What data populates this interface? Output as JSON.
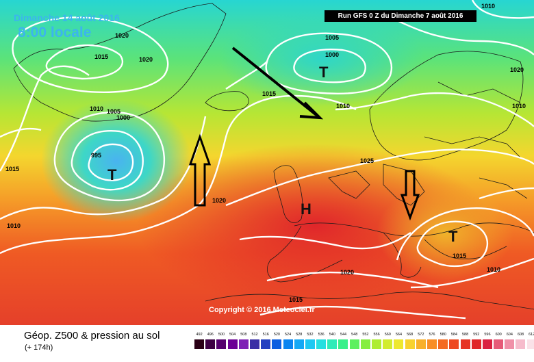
{
  "map": {
    "date_label": "Dimanche 14 août 2016",
    "time_label": "8:00 locale",
    "run_label": "Run GFS 0 Z du Dimanche 7 août 2016",
    "copyright": "Copyright © 2016 Meteociel.fr",
    "product_label": "Géop. Z500 & pression au sol",
    "lead_time": "(+ 174h)",
    "isobar_labels": [
      "1020",
      "1015",
      "1020",
      "1010",
      "1005",
      "1000",
      "995",
      "1015",
      "1010",
      "1005",
      "1000",
      "1015",
      "1010",
      "1010",
      "1020",
      "1020",
      "1025",
      "1015",
      "1010",
      "1020",
      "1015",
      "1010"
    ],
    "pressure_centers": [
      {
        "symbol": "T",
        "type": "low"
      },
      {
        "symbol": "T",
        "type": "low"
      },
      {
        "symbol": "H",
        "type": "high"
      },
      {
        "symbol": "T",
        "type": "low"
      }
    ],
    "scale_labels": [
      "492",
      "496",
      "500",
      "504",
      "508",
      "512",
      "516",
      "520",
      "524",
      "528",
      "532",
      "536",
      "540",
      "544",
      "548",
      "552",
      "556",
      "560",
      "564",
      "568",
      "572",
      "576",
      "580",
      "584",
      "588",
      "592",
      "596",
      "600",
      "604",
      "608",
      "612"
    ],
    "scale_colors": [
      "#2a0016",
      "#3e0044",
      "#55006e",
      "#6c0095",
      "#7e20b5",
      "#3b2fa5",
      "#2440c0",
      "#0d5fe0",
      "#0a84f0",
      "#14a8f5",
      "#1ec8f2",
      "#26dfe0",
      "#30ebb8",
      "#3bf08a",
      "#5df060",
      "#86ee40",
      "#aeed32",
      "#d2ec2e",
      "#eee82e",
      "#f8d22e",
      "#f8b02a",
      "#f88e26",
      "#f46a22",
      "#ee4a22",
      "#e63424",
      "#e02628",
      "#da2040",
      "#e65a78",
      "#f090a8",
      "#f6bccc",
      "#fae2e8"
    ]
  }
}
